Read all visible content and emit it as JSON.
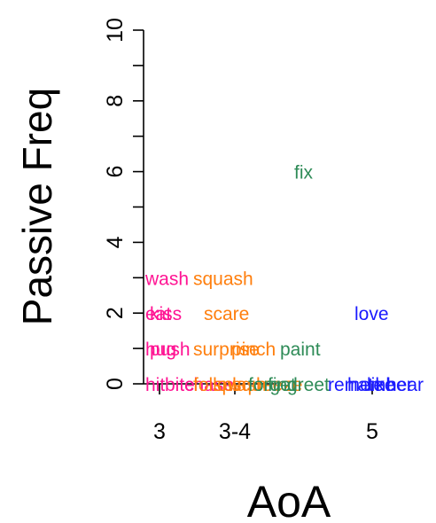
{
  "chart_data": {
    "type": "scatter",
    "title": "",
    "xlabel": "AoA",
    "ylabel": "Passive Freq",
    "ylim": [
      0,
      10
    ],
    "yticks": [
      "0",
      "2",
      "4",
      "6",
      "8",
      "10"
    ],
    "xticks": [
      "3",
      "3-4",
      "5"
    ],
    "grid": false,
    "colors": {
      "pink": "#ff1493",
      "orange": "#ff7f0e",
      "green": "#2e8b57",
      "blue": "#1a1aff"
    },
    "points": [
      {
        "label": "wash",
        "x": "3",
        "y": 3,
        "color": "pink"
      },
      {
        "label": "eat",
        "x": "3",
        "y": 2,
        "color": "pink"
      },
      {
        "label": "kiss",
        "x": "3",
        "y": 2,
        "color": "pink"
      },
      {
        "label": "hug",
        "x": "3",
        "y": 1,
        "color": "pink"
      },
      {
        "label": "push",
        "x": "3",
        "y": 1,
        "color": "pink"
      },
      {
        "label": "hit",
        "x": "3",
        "y": 0,
        "color": "pink"
      },
      {
        "label": "bite",
        "x": "3",
        "y": 0,
        "color": "pink"
      },
      {
        "label": "chase",
        "x": "3",
        "y": 0,
        "color": "pink"
      },
      {
        "label": "squash",
        "x": "3-4",
        "y": 3,
        "color": "orange"
      },
      {
        "label": "scare",
        "x": "3-4",
        "y": 2,
        "color": "orange"
      },
      {
        "label": "surprise",
        "x": "3-4",
        "y": 1,
        "color": "orange"
      },
      {
        "label": "pinch",
        "x": "3-4",
        "y": 1,
        "color": "orange"
      },
      {
        "label": "follow",
        "x": "3-4",
        "y": 0,
        "color": "orange"
      },
      {
        "label": "splash",
        "x": "3-4",
        "y": 0,
        "color": "orange"
      },
      {
        "label": "squeeze",
        "x": "3-4",
        "y": 0,
        "color": "orange"
      },
      {
        "label": "fix",
        "x": "4",
        "y": 6,
        "color": "green"
      },
      {
        "label": "paint",
        "x": "4",
        "y": 1,
        "color": "green"
      },
      {
        "label": "forget",
        "x": "4",
        "y": 0,
        "color": "green"
      },
      {
        "label": "find",
        "x": "4",
        "y": 0,
        "color": "green"
      },
      {
        "label": "greet",
        "x": "4",
        "y": 0,
        "color": "green"
      },
      {
        "label": "love",
        "x": "5",
        "y": 2,
        "color": "blue"
      },
      {
        "label": "remember",
        "x": "5",
        "y": 0,
        "color": "blue"
      },
      {
        "label": "hate",
        "x": "5",
        "y": 0,
        "color": "blue"
      },
      {
        "label": "like",
        "x": "5",
        "y": 0,
        "color": "blue"
      },
      {
        "label": "hear",
        "x": "5",
        "y": 0,
        "color": "blue"
      }
    ]
  }
}
